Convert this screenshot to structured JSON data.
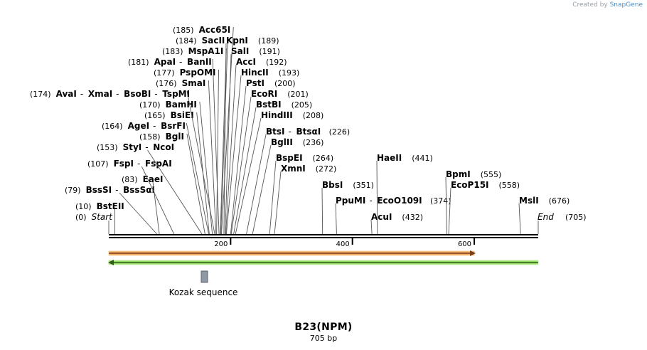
{
  "credit": {
    "prefix": "Created by",
    "brand": "SnapGene"
  },
  "construct": {
    "name": "B23(NPM)",
    "length_label": "705 bp",
    "length_bp": 705
  },
  "ruler": {
    "ticks": [
      {
        "pos": 200,
        "label": "200"
      },
      {
        "pos": 400,
        "label": "400"
      },
      {
        "pos": 600,
        "label": "600"
      }
    ]
  },
  "sites": [
    {
      "pos": 0,
      "names": [
        "Start"
      ],
      "number": "(0)",
      "italic": true
    },
    {
      "pos": 10,
      "names": [
        "BstEII"
      ],
      "number": "(10)"
    },
    {
      "pos": 79,
      "names": [
        "BssSI",
        "BssSαI"
      ],
      "number": "(79)"
    },
    {
      "pos": 83,
      "names": [
        "EaeI"
      ],
      "number": "(83)"
    },
    {
      "pos": 107,
      "names": [
        "FspI",
        "FspAI"
      ],
      "number": "(107)"
    },
    {
      "pos": 153,
      "names": [
        "StyI",
        "NcoI"
      ],
      "number": "(153)"
    },
    {
      "pos": 158,
      "names": [
        "BglI"
      ],
      "number": "(158)"
    },
    {
      "pos": 164,
      "names": [
        "AgeI",
        "BsrFI"
      ],
      "number": "(164)"
    },
    {
      "pos": 165,
      "names": [
        "BsiEI"
      ],
      "number": "(165)"
    },
    {
      "pos": 170,
      "names": [
        "BamHI"
      ],
      "number": "(170)"
    },
    {
      "pos": 174,
      "names": [
        "AvaI",
        "XmaI",
        "BsoBI",
        "TspMI"
      ],
      "number": "(174)"
    },
    {
      "pos": 176,
      "names": [
        "SmaI"
      ],
      "number": "(176)"
    },
    {
      "pos": 177,
      "names": [
        "PspOMI"
      ],
      "number": "(177)"
    },
    {
      "pos": 181,
      "names": [
        "ApaI",
        "BanII"
      ],
      "number": "(181)"
    },
    {
      "pos": 183,
      "names": [
        "MspA1I"
      ],
      "number": "(183)"
    },
    {
      "pos": 184,
      "names": [
        "SacII"
      ],
      "number": "(184)"
    },
    {
      "pos": 185,
      "names": [
        "Acc65I"
      ],
      "number": "(185)"
    },
    {
      "pos": 189,
      "names": [
        "KpnI"
      ],
      "number": "(189)"
    },
    {
      "pos": 191,
      "names": [
        "SalI"
      ],
      "number": "(191)"
    },
    {
      "pos": 192,
      "names": [
        "AccI"
      ],
      "number": "(192)"
    },
    {
      "pos": 193,
      "names": [
        "HincII"
      ],
      "number": "(193)"
    },
    {
      "pos": 200,
      "names": [
        "PstI"
      ],
      "number": "(200)"
    },
    {
      "pos": 201,
      "names": [
        "EcoRI"
      ],
      "number": "(201)"
    },
    {
      "pos": 205,
      "names": [
        "BstBI"
      ],
      "number": "(205)"
    },
    {
      "pos": 208,
      "names": [
        "HindIII"
      ],
      "number": "(208)"
    },
    {
      "pos": 226,
      "names": [
        "BtsI",
        "BtsαI"
      ],
      "number": "(226)"
    },
    {
      "pos": 236,
      "names": [
        "BglII"
      ],
      "number": "(236)"
    },
    {
      "pos": 264,
      "names": [
        "BspEI"
      ],
      "number": "(264)"
    },
    {
      "pos": 272,
      "names": [
        "XmnI"
      ],
      "number": "(272)"
    },
    {
      "pos": 351,
      "names": [
        "BbsI"
      ],
      "number": "(351)"
    },
    {
      "pos": 374,
      "names": [
        "PpuMI",
        "EcoO109I"
      ],
      "number": "(374)"
    },
    {
      "pos": 432,
      "names": [
        "AcuI"
      ],
      "number": "(432)"
    },
    {
      "pos": 441,
      "names": [
        "HaeII"
      ],
      "number": "(441)"
    },
    {
      "pos": 555,
      "names": [
        "BpmI"
      ],
      "number": "(555)"
    },
    {
      "pos": 558,
      "names": [
        "EcoP15I"
      ],
      "number": "(558)"
    },
    {
      "pos": 676,
      "names": [
        "MslI"
      ],
      "number": "(676)"
    },
    {
      "pos": 705,
      "names": [
        "End"
      ],
      "number": "(705)",
      "italic": true
    }
  ],
  "features": [
    {
      "name": "cds-forward",
      "start": 0,
      "end": 600,
      "direction": "forward",
      "fill": "#f0a860",
      "edge": "#f5d7a0",
      "line": "#7a3d1a"
    },
    {
      "name": "cds-reverse",
      "start": 0,
      "end": 705,
      "direction": "reverse",
      "fill": "#9be06a",
      "edge": "#c9f0a8",
      "line": "#2e5e1a"
    },
    {
      "name": "kozak-sequence",
      "label": "Kozak sequence",
      "start": 153,
      "end": 163,
      "fill": "#9098a4",
      "edge": "#5c6470"
    }
  ]
}
